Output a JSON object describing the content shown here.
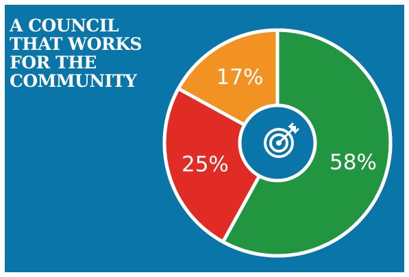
{
  "title_lines": [
    "A COUNCIL",
    "THAT WORKS",
    "FOR THE",
    "COMMUNITY"
  ],
  "colors": {
    "background": "#0a75a8",
    "green": "#219540",
    "red": "#e12b25",
    "orange": "#f29222",
    "white": "#ffffff"
  },
  "center_icon": "target-icon",
  "chart_data": {
    "type": "pie",
    "style": "donut",
    "title": "A COUNCIL THAT WORKS FOR THE COMMUNITY",
    "slices": [
      {
        "label": "58%",
        "value": 58,
        "color": "#219540"
      },
      {
        "label": "25%",
        "value": 25,
        "color": "#e12b25"
      },
      {
        "label": "17%",
        "value": 17,
        "color": "#f29222"
      }
    ]
  }
}
